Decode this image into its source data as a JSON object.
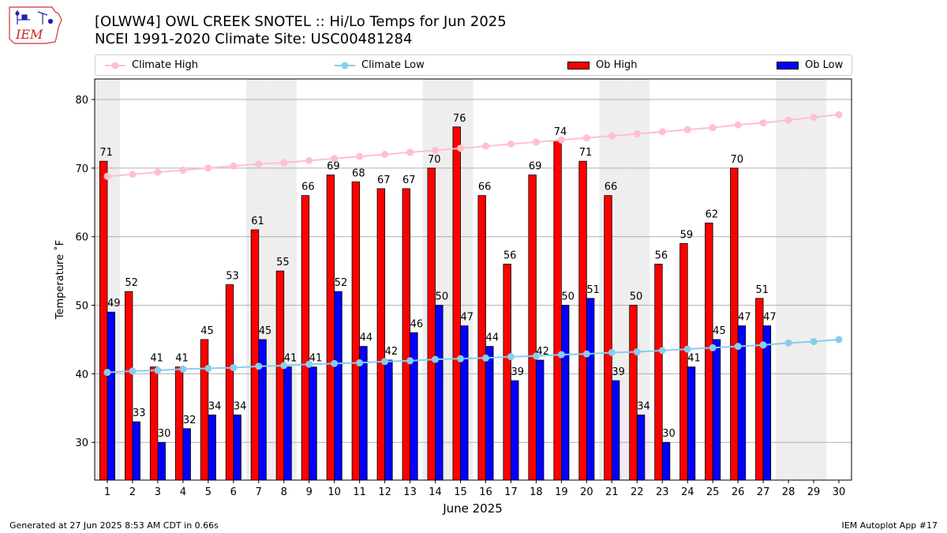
{
  "header": {
    "title_line1": "[OLWW4] OWL CREEK SNOTEL :: Hi/Lo Temps for Jun 2025",
    "title_line2": "NCEI 1991-2020 Climate Site: USC00481284"
  },
  "logo": {
    "text": "IEM",
    "icon": "iowa-state-outline-icon"
  },
  "legend": {
    "climate_high": "Climate High",
    "climate_low": "Climate Low",
    "ob_high": "Ob High",
    "ob_low": "Ob Low"
  },
  "footer": {
    "left": "Generated at 27 Jun 2025 8:53 AM CDT in 0.66s",
    "right": "IEM Autoplot App #17"
  },
  "colors": {
    "ob_high": "#ff0000",
    "ob_low": "#0000ff",
    "climate_high": "#ffc0cb",
    "climate_low": "#87ceeb",
    "weekend_shade": "#eeeeee"
  },
  "chart_data": {
    "type": "bar",
    "xlabel": "June 2025",
    "ylabel": "Temperature ˚F",
    "xlim": [
      0.5,
      30.5
    ],
    "ylim": [
      24.5,
      83
    ],
    "yticks": [
      30,
      40,
      50,
      60,
      70,
      80
    ],
    "grid": "horizontal",
    "legend_position": "top",
    "categories": [
      1,
      2,
      3,
      4,
      5,
      6,
      7,
      8,
      9,
      10,
      11,
      12,
      13,
      14,
      15,
      16,
      17,
      18,
      19,
      20,
      21,
      22,
      23,
      24,
      25,
      26,
      27,
      28,
      29,
      30
    ],
    "shaded_days": [
      1,
      7,
      8,
      14,
      15,
      21,
      22,
      28,
      29
    ],
    "series": [
      {
        "name": "Ob High",
        "kind": "bar",
        "values": [
          71,
          52,
          41,
          41,
          45,
          53,
          61,
          55,
          66,
          69,
          68,
          67,
          67,
          70,
          76,
          66,
          56,
          69,
          74,
          71,
          66,
          50,
          56,
          59,
          62,
          70,
          51,
          null,
          null,
          null
        ]
      },
      {
        "name": "Ob Low",
        "kind": "bar",
        "values": [
          49,
          33,
          30,
          32,
          34,
          34,
          45,
          41,
          41,
          52,
          44,
          42,
          46,
          50,
          47,
          44,
          39,
          42,
          50,
          51,
          39,
          34,
          30,
          41,
          45,
          47,
          47,
          null,
          null,
          null
        ]
      },
      {
        "name": "Climate High",
        "kind": "line",
        "values": [
          68.8,
          69.1,
          69.4,
          69.7,
          70.0,
          70.3,
          70.6,
          70.8,
          71.1,
          71.4,
          71.7,
          72.0,
          72.3,
          72.6,
          72.9,
          73.2,
          73.5,
          73.8,
          74.1,
          74.4,
          74.7,
          75.0,
          75.3,
          75.6,
          75.9,
          76.3,
          76.6,
          77.0,
          77.4,
          77.8
        ]
      },
      {
        "name": "Climate Low",
        "kind": "line",
        "values": [
          40.2,
          40.4,
          40.5,
          40.7,
          40.8,
          40.9,
          41.1,
          41.2,
          41.4,
          41.5,
          41.6,
          41.8,
          41.9,
          42.1,
          42.2,
          42.3,
          42.5,
          42.6,
          42.8,
          42.9,
          43.1,
          43.2,
          43.4,
          43.6,
          43.8,
          44.0,
          44.2,
          44.5,
          44.7,
          45.0
        ]
      }
    ]
  }
}
